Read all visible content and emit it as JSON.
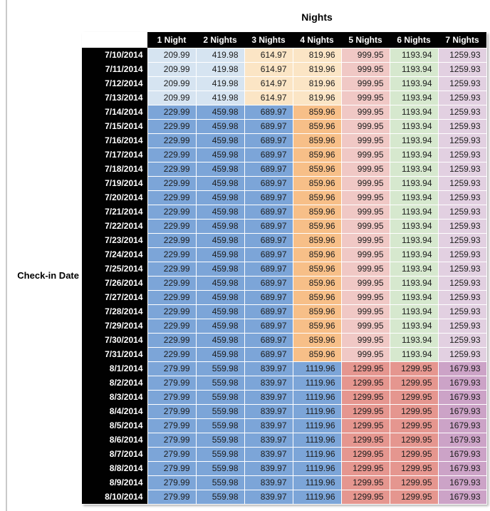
{
  "palette": {
    "light_blue": "#D6E4F1",
    "light_orange": "#FBE5C5",
    "light_red": "#F0C8C5",
    "light_green": "#D6E8CE",
    "light_mauve": "#E2D0E1",
    "med_blue": "#7CA5D8",
    "orange": "#F7BF88",
    "salmon": "#E5968F",
    "mauve": "#CCA3C7",
    "header_bg": "#010101",
    "header_text": "#FFFFFF"
  },
  "style_groups": {
    "A": [
      "light_blue",
      "light_blue",
      "light_orange",
      "light_orange",
      "light_red",
      "light_green",
      "light_mauve"
    ],
    "B": [
      "med_blue",
      "med_blue",
      "med_blue",
      "orange",
      "light_red",
      "light_green",
      "light_mauve"
    ],
    "C": [
      "med_blue",
      "med_blue",
      "med_blue",
      "med_blue",
      "salmon",
      "salmon",
      "mauve"
    ]
  },
  "chart_data": {
    "type": "table",
    "title": "Nights",
    "row_header": "Check-in Date",
    "columns": [
      "1 Night",
      "2 Nights",
      "3 Nights",
      "4 Nights",
      "5 Nights",
      "6 Nights",
      "7 Nights"
    ],
    "rows": [
      {
        "date": "7/10/2014",
        "style_group": "A",
        "values": [
          "209.99",
          "419.98",
          "614.97",
          "819.96",
          "999.95",
          "1193.94",
          "1259.93"
        ]
      },
      {
        "date": "7/11/2014",
        "style_group": "A",
        "values": [
          "209.99",
          "419.98",
          "614.97",
          "819.96",
          "999.95",
          "1193.94",
          "1259.93"
        ]
      },
      {
        "date": "7/12/2014",
        "style_group": "A",
        "values": [
          "209.99",
          "419.98",
          "614.97",
          "819.96",
          "999.95",
          "1193.94",
          "1259.93"
        ]
      },
      {
        "date": "7/13/2014",
        "style_group": "A",
        "values": [
          "209.99",
          "419.98",
          "614.97",
          "819.96",
          "999.95",
          "1193.94",
          "1259.93"
        ]
      },
      {
        "date": "7/14/2014",
        "style_group": "B",
        "values": [
          "229.99",
          "459.98",
          "689.97",
          "859.96",
          "999.95",
          "1193.94",
          "1259.93"
        ]
      },
      {
        "date": "7/15/2014",
        "style_group": "B",
        "values": [
          "229.99",
          "459.98",
          "689.97",
          "859.96",
          "999.95",
          "1193.94",
          "1259.93"
        ]
      },
      {
        "date": "7/16/2014",
        "style_group": "B",
        "values": [
          "229.99",
          "459.98",
          "689.97",
          "859.96",
          "999.95",
          "1193.94",
          "1259.93"
        ]
      },
      {
        "date": "7/17/2014",
        "style_group": "B",
        "values": [
          "229.99",
          "459.98",
          "689.97",
          "859.96",
          "999.95",
          "1193.94",
          "1259.93"
        ]
      },
      {
        "date": "7/18/2014",
        "style_group": "B",
        "values": [
          "229.99",
          "459.98",
          "689.97",
          "859.96",
          "999.95",
          "1193.94",
          "1259.93"
        ]
      },
      {
        "date": "7/19/2014",
        "style_group": "B",
        "values": [
          "229.99",
          "459.98",
          "689.97",
          "859.96",
          "999.95",
          "1193.94",
          "1259.93"
        ]
      },
      {
        "date": "7/20/2014",
        "style_group": "B",
        "values": [
          "229.99",
          "459.98",
          "689.97",
          "859.96",
          "999.95",
          "1193.94",
          "1259.93"
        ]
      },
      {
        "date": "7/21/2014",
        "style_group": "B",
        "values": [
          "229.99",
          "459.98",
          "689.97",
          "859.96",
          "999.95",
          "1193.94",
          "1259.93"
        ]
      },
      {
        "date": "7/22/2014",
        "style_group": "B",
        "values": [
          "229.99",
          "459.98",
          "689.97",
          "859.96",
          "999.95",
          "1193.94",
          "1259.93"
        ]
      },
      {
        "date": "7/23/2014",
        "style_group": "B",
        "values": [
          "229.99",
          "459.98",
          "689.97",
          "859.96",
          "999.95",
          "1193.94",
          "1259.93"
        ]
      },
      {
        "date": "7/24/2014",
        "style_group": "B",
        "values": [
          "229.99",
          "459.98",
          "689.97",
          "859.96",
          "999.95",
          "1193.94",
          "1259.93"
        ]
      },
      {
        "date": "7/25/2014",
        "style_group": "B",
        "values": [
          "229.99",
          "459.98",
          "689.97",
          "859.96",
          "999.95",
          "1193.94",
          "1259.93"
        ]
      },
      {
        "date": "7/26/2014",
        "style_group": "B",
        "values": [
          "229.99",
          "459.98",
          "689.97",
          "859.96",
          "999.95",
          "1193.94",
          "1259.93"
        ]
      },
      {
        "date": "7/27/2014",
        "style_group": "B",
        "values": [
          "229.99",
          "459.98",
          "689.97",
          "859.96",
          "999.95",
          "1193.94",
          "1259.93"
        ]
      },
      {
        "date": "7/28/2014",
        "style_group": "B",
        "values": [
          "229.99",
          "459.98",
          "689.97",
          "859.96",
          "999.95",
          "1193.94",
          "1259.93"
        ]
      },
      {
        "date": "7/29/2014",
        "style_group": "B",
        "values": [
          "229.99",
          "459.98",
          "689.97",
          "859.96",
          "999.95",
          "1193.94",
          "1259.93"
        ]
      },
      {
        "date": "7/30/2014",
        "style_group": "B",
        "values": [
          "229.99",
          "459.98",
          "689.97",
          "859.96",
          "999.95",
          "1193.94",
          "1259.93"
        ]
      },
      {
        "date": "7/31/2014",
        "style_group": "B",
        "values": [
          "229.99",
          "459.98",
          "689.97",
          "859.96",
          "999.95",
          "1193.94",
          "1259.93"
        ]
      },
      {
        "date": "8/1/2014",
        "style_group": "C",
        "values": [
          "279.99",
          "559.98",
          "839.97",
          "1119.96",
          "1299.95",
          "1299.95",
          "1679.93"
        ]
      },
      {
        "date": "8/2/2014",
        "style_group": "C",
        "values": [
          "279.99",
          "559.98",
          "839.97",
          "1119.96",
          "1299.95",
          "1299.95",
          "1679.93"
        ]
      },
      {
        "date": "8/3/2014",
        "style_group": "C",
        "values": [
          "279.99",
          "559.98",
          "839.97",
          "1119.96",
          "1299.95",
          "1299.95",
          "1679.93"
        ]
      },
      {
        "date": "8/4/2014",
        "style_group": "C",
        "values": [
          "279.99",
          "559.98",
          "839.97",
          "1119.96",
          "1299.95",
          "1299.95",
          "1679.93"
        ]
      },
      {
        "date": "8/5/2014",
        "style_group": "C",
        "values": [
          "279.99",
          "559.98",
          "839.97",
          "1119.96",
          "1299.95",
          "1299.95",
          "1679.93"
        ]
      },
      {
        "date": "8/6/2014",
        "style_group": "C",
        "values": [
          "279.99",
          "559.98",
          "839.97",
          "1119.96",
          "1299.95",
          "1299.95",
          "1679.93"
        ]
      },
      {
        "date": "8/7/2014",
        "style_group": "C",
        "values": [
          "279.99",
          "559.98",
          "839.97",
          "1119.96",
          "1299.95",
          "1299.95",
          "1679.93"
        ]
      },
      {
        "date": "8/8/2014",
        "style_group": "C",
        "values": [
          "279.99",
          "559.98",
          "839.97",
          "1119.96",
          "1299.95",
          "1299.95",
          "1679.93"
        ]
      },
      {
        "date": "8/9/2014",
        "style_group": "C",
        "values": [
          "279.99",
          "559.98",
          "839.97",
          "1119.96",
          "1299.95",
          "1299.95",
          "1679.93"
        ]
      },
      {
        "date": "8/10/2014",
        "style_group": "C",
        "values": [
          "279.99",
          "559.98",
          "839.97",
          "1119.96",
          "1299.95",
          "1299.95",
          "1679.93"
        ]
      }
    ]
  }
}
